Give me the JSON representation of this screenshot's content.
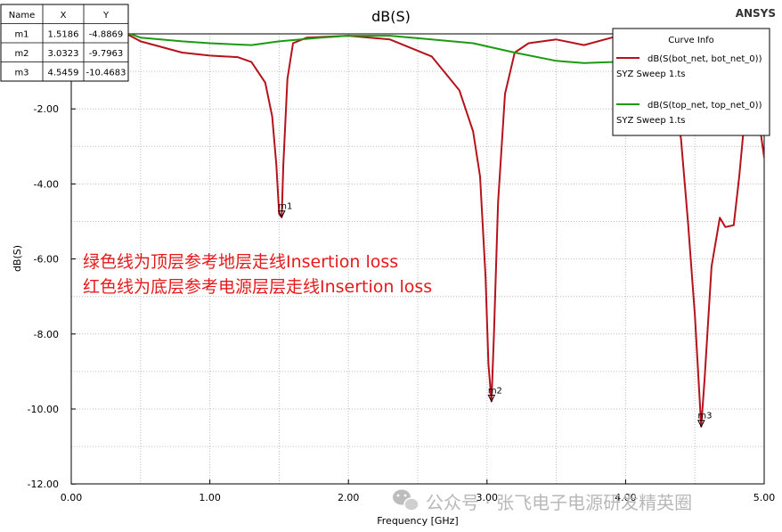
{
  "chart_data": {
    "type": "line",
    "title": "dB(S)",
    "brand": "ANSYS",
    "xlabel": "Frequency [GHz]",
    "ylabel": "dB(S)",
    "xlim": [
      0,
      5
    ],
    "ylim": [
      -12,
      0
    ],
    "xticks": [
      "0.00",
      "1.00",
      "2.00",
      "3.00",
      "4.00",
      "5.00"
    ],
    "xtick_values": [
      0,
      1,
      2,
      3,
      4,
      5
    ],
    "yticks": [
      "-2.00",
      "-4.00",
      "-6.00",
      "-8.00",
      "-10.00",
      "-12.00"
    ],
    "ytick_values": [
      -2,
      -4,
      -6,
      -8,
      -10,
      -12
    ],
    "grid": true,
    "series": [
      {
        "name": "dB(S(bot_net, bot_net_0))",
        "source": "SYZ Sweep 1.ts",
        "color": "#b5121b",
        "x": [
          0,
          0.25,
          0.5,
          0.8,
          1.0,
          1.2,
          1.3,
          1.4,
          1.45,
          1.48,
          1.5,
          1.5186,
          1.53,
          1.56,
          1.6,
          1.7,
          2.0,
          2.3,
          2.6,
          2.8,
          2.9,
          2.95,
          2.99,
          3.01,
          3.0323,
          3.05,
          3.08,
          3.13,
          3.2,
          3.3,
          3.5,
          3.7,
          3.9,
          4.0,
          4.2,
          4.3,
          4.4,
          4.45,
          4.5,
          4.5459,
          4.57,
          4.62,
          4.68,
          4.72,
          4.78,
          4.82,
          4.87,
          4.92,
          4.97,
          5.0
        ],
        "y": [
          0.6,
          0.3,
          -0.2,
          -0.5,
          -0.58,
          -0.62,
          -0.75,
          -1.3,
          -2.2,
          -3.5,
          -4.8,
          -4.8869,
          -3.5,
          -1.2,
          -0.25,
          -0.1,
          -0.05,
          -0.15,
          -0.6,
          -1.5,
          -2.6,
          -3.8,
          -6.5,
          -8.8,
          -9.7963,
          -8.0,
          -4.5,
          -1.6,
          -0.5,
          -0.25,
          -0.15,
          -0.3,
          -0.1,
          0.1,
          0.2,
          -0.6,
          -2.8,
          -5.0,
          -7.5,
          -10.4683,
          -9.2,
          -6.2,
          -4.9,
          -5.15,
          -5.1,
          -3.8,
          -1.8,
          -0.8,
          -2.5,
          -3.3
        ]
      },
      {
        "name": "dB(S(top_net, top_net_0))",
        "source": "SYZ Sweep 1.ts",
        "color": "#1c9a12",
        "x": [
          0,
          0.2,
          0.5,
          0.8,
          1.0,
          1.3,
          1.5,
          1.8,
          2.0,
          2.3,
          2.6,
          2.9,
          3.2,
          3.5,
          3.7,
          3.9,
          4.0
        ],
        "y": [
          0.6,
          0.3,
          -0.1,
          -0.2,
          -0.25,
          -0.3,
          -0.2,
          -0.1,
          -0.05,
          -0.05,
          -0.15,
          -0.25,
          -0.5,
          -0.72,
          -0.78,
          -0.75,
          -0.7
        ]
      }
    ],
    "markers": [
      {
        "name": "m1",
        "x": 1.5186,
        "y": -4.8869
      },
      {
        "name": "m2",
        "x": 3.0323,
        "y": -9.7963
      },
      {
        "name": "m3",
        "x": 4.5459,
        "y": -10.4683
      }
    ],
    "marker_table": {
      "headers": [
        "Name",
        "X",
        "Y"
      ],
      "rows": [
        [
          "m1",
          "1.5186",
          "-4.8869"
        ],
        [
          "m2",
          "3.0323",
          "-9.7963"
        ],
        [
          "m3",
          "4.5459",
          "-10.4683"
        ]
      ]
    },
    "legend": {
      "title": "Curve Info",
      "placement": "top-right",
      "entries": [
        {
          "name": "dB(S(bot_net, bot_net_0))",
          "source": "SYZ Sweep 1.ts",
          "color": "#b5121b"
        },
        {
          "name": "dB(S(top_net, top_net_0))",
          "source": "SYZ Sweep 1.ts",
          "color": "#1c9a12"
        }
      ]
    },
    "annotations": [
      "绿色线为顶层参考地层走线Insertion loss",
      "红色线为底层参考电源层层走线Insertion loss"
    ],
    "watermark": "公众号 · 张飞电子电源研发精英圈"
  }
}
